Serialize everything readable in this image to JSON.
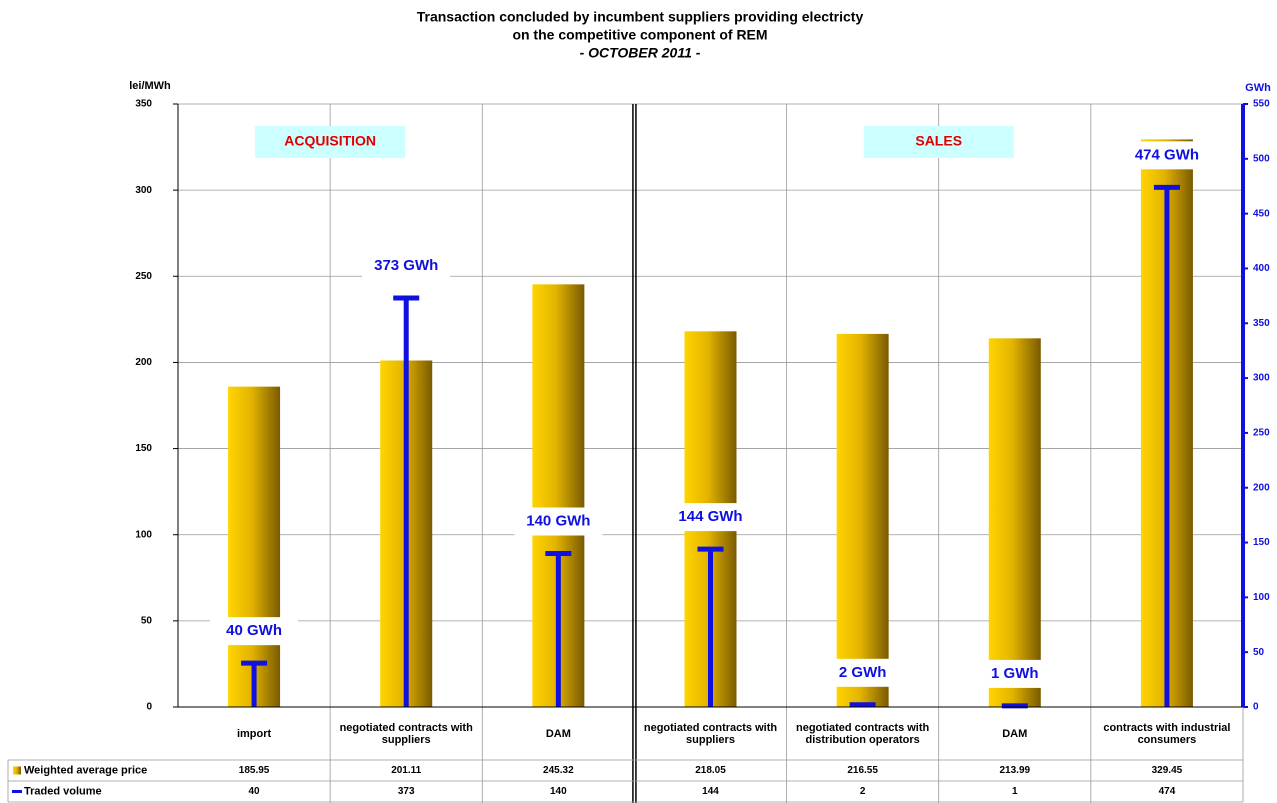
{
  "chart_data": {
    "type": "bar",
    "title": [
      "Transaction concluded by incumbent suppliers providing electricty",
      "on the competitive component of REM"
    ],
    "subtitle": "- OCTOBER 2011 -",
    "y_label": "lei/MWh",
    "y2_label": "GWh",
    "annotations": [
      "ACQUISITION",
      "SALES"
    ],
    "categories": [
      "import",
      "negotiated contracts with suppliers",
      "DAM",
      "negotiated contracts with suppliers",
      "negotiated contracts with distribution operators",
      "DAM",
      "contracts with industrial consumers"
    ],
    "series": [
      {
        "name": "Weighted average price",
        "color": "#e6b800",
        "values": [
          185.95,
          201.11,
          245.32,
          218.05,
          216.55,
          213.99,
          329.45
        ]
      },
      {
        "name": "Traded volume",
        "color": "#1010e0",
        "axis": "y2",
        "values": [
          40,
          373,
          140,
          144,
          2,
          1,
          474
        ],
        "value_labels": [
          "40 GWh",
          "373 GWh",
          "140 GWh",
          "144 GWh",
          "2 GWh",
          "1 GWh",
          "474 GWh"
        ]
      }
    ],
    "ylim": [
      0,
      350
    ],
    "yticks": [
      0,
      50,
      100,
      150,
      200,
      250,
      300,
      350
    ],
    "y2lim": [
      0,
      550
    ],
    "y2ticks": [
      0,
      50,
      100,
      150,
      200,
      250,
      300,
      350,
      400,
      450,
      500,
      550
    ],
    "grid": true
  }
}
